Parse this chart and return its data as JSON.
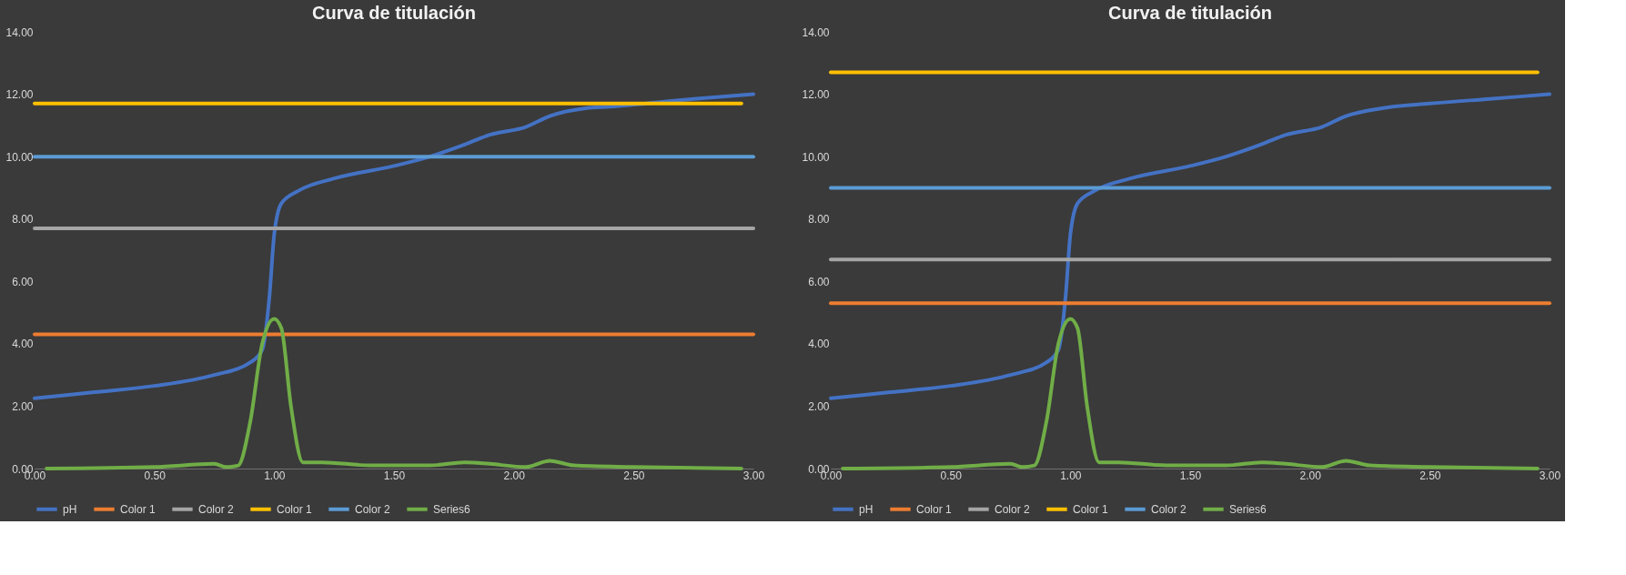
{
  "chart_data": [
    {
      "type": "line",
      "title": "Curva de titulación",
      "xlim": [
        0,
        3
      ],
      "ylim": [
        0,
        14
      ],
      "xticks": [
        {
          "value": 0,
          "label": "0.00"
        },
        {
          "value": 0.5,
          "label": "0.50"
        },
        {
          "value": 1,
          "label": "1.00"
        },
        {
          "value": 1.5,
          "label": "1.50"
        },
        {
          "value": 2,
          "label": "2.00"
        },
        {
          "value": 2.5,
          "label": "2.50"
        },
        {
          "value": 3,
          "label": "3.00"
        }
      ],
      "yticks": [
        {
          "value": 0,
          "label": "0.00"
        },
        {
          "value": 2,
          "label": "2.00"
        },
        {
          "value": 4,
          "label": "4.00"
        },
        {
          "value": 6,
          "label": "6.00"
        },
        {
          "value": 8,
          "label": "8.00"
        },
        {
          "value": 10,
          "label": "10.00"
        },
        {
          "value": 12,
          "label": "12.00"
        },
        {
          "value": 14,
          "label": "14.00"
        }
      ],
      "grid": false,
      "legend": "bottom",
      "marker": "none",
      "line_style": "solid",
      "series": [
        {
          "name": "pH",
          "color": "#4472c4",
          "x": [
            0,
            0.25,
            0.5,
            0.75,
            0.9,
            0.95,
            0.98,
            1.0,
            1.03,
            1.1,
            1.25,
            1.5,
            1.65,
            1.8,
            1.9,
            2.05,
            2.15,
            2.3,
            2.4,
            2.75,
            3.0
          ],
          "values": [
            2.25,
            2.45,
            2.65,
            3.0,
            3.4,
            3.8,
            5.5,
            7.5,
            8.5,
            8.9,
            9.3,
            9.7,
            10.0,
            10.4,
            10.7,
            10.95,
            11.3,
            11.55,
            11.6,
            11.85,
            12.0
          ]
        },
        {
          "name": "Color 1",
          "color": "#ed7d31",
          "x": [
            0,
            3.0
          ],
          "values": [
            4.3,
            4.3
          ]
        },
        {
          "name": "Color 2",
          "color": "#a5a5a5",
          "x": [
            0,
            3.0
          ],
          "values": [
            7.7,
            7.7
          ]
        },
        {
          "name": "Color 1",
          "color": "#ffc000",
          "x": [
            0,
            2.95
          ],
          "values": [
            11.7,
            11.7
          ]
        },
        {
          "name": "Color 2",
          "color": "#5b9bd5",
          "x": [
            0,
            3.0
          ],
          "values": [
            10.0,
            10.0
          ]
        },
        {
          "name": "Series6",
          "color": "#70ad47",
          "x": [
            0.05,
            0.5,
            0.75,
            0.8,
            0.85,
            0.9,
            0.95,
            1.0,
            1.03,
            1.07,
            1.12,
            1.2,
            1.4,
            1.65,
            1.8,
            1.9,
            2.05,
            2.15,
            2.25,
            2.5,
            2.95
          ],
          "values": [
            0.0,
            0.05,
            0.15,
            0.05,
            0.1,
            1.5,
            4.0,
            4.8,
            4.5,
            2.0,
            0.2,
            0.2,
            0.1,
            0.1,
            0.2,
            0.15,
            0.05,
            0.25,
            0.1,
            0.05,
            0.0
          ]
        }
      ]
    },
    {
      "type": "line",
      "title": "Curva de titulación",
      "xlim": [
        0,
        3
      ],
      "ylim": [
        0,
        14
      ],
      "xticks": [
        {
          "value": 0,
          "label": "0.00"
        },
        {
          "value": 0.5,
          "label": "0.50"
        },
        {
          "value": 1,
          "label": "1.00"
        },
        {
          "value": 1.5,
          "label": "1.50"
        },
        {
          "value": 2,
          "label": "2.00"
        },
        {
          "value": 2.5,
          "label": "2.50"
        },
        {
          "value": 3,
          "label": "3.00"
        }
      ],
      "yticks": [
        {
          "value": 0,
          "label": "0.00"
        },
        {
          "value": 2,
          "label": "2.00"
        },
        {
          "value": 4,
          "label": "4.00"
        },
        {
          "value": 6,
          "label": "6.00"
        },
        {
          "value": 8,
          "label": "8.00"
        },
        {
          "value": 10,
          "label": "10.00"
        },
        {
          "value": 12,
          "label": "12.00"
        },
        {
          "value": 14,
          "label": "14.00"
        }
      ],
      "grid": false,
      "legend": "bottom",
      "marker": "none",
      "line_style": "solid",
      "series": [
        {
          "name": "pH",
          "color": "#4472c4",
          "x": [
            0,
            0.25,
            0.5,
            0.75,
            0.9,
            0.95,
            0.98,
            1.0,
            1.03,
            1.1,
            1.25,
            1.5,
            1.65,
            1.8,
            1.9,
            2.05,
            2.15,
            2.3,
            2.5,
            2.75,
            3.0
          ],
          "values": [
            2.25,
            2.45,
            2.65,
            3.0,
            3.4,
            3.8,
            5.5,
            7.5,
            8.5,
            8.9,
            9.3,
            9.7,
            10.0,
            10.4,
            10.7,
            10.95,
            11.3,
            11.55,
            11.7,
            11.85,
            12.0
          ]
        },
        {
          "name": "Color 1",
          "color": "#ed7d31",
          "x": [
            0,
            3.0
          ],
          "values": [
            5.3,
            5.3
          ]
        },
        {
          "name": "Color 2",
          "color": "#a5a5a5",
          "x": [
            0,
            3.0
          ],
          "values": [
            6.7,
            6.7
          ]
        },
        {
          "name": "Color 1",
          "color": "#ffc000",
          "x": [
            0,
            2.95
          ],
          "values": [
            12.7,
            12.7
          ]
        },
        {
          "name": "Color 2",
          "color": "#5b9bd5",
          "x": [
            0,
            3.0
          ],
          "values": [
            9.0,
            9.0
          ]
        },
        {
          "name": "Series6",
          "color": "#70ad47",
          "x": [
            0.05,
            0.5,
            0.75,
            0.8,
            0.85,
            0.9,
            0.95,
            1.0,
            1.03,
            1.07,
            1.12,
            1.2,
            1.4,
            1.65,
            1.8,
            1.9,
            2.05,
            2.15,
            2.25,
            2.5,
            2.95
          ],
          "values": [
            0.0,
            0.05,
            0.15,
            0.05,
            0.1,
            1.5,
            4.0,
            4.8,
            4.5,
            2.0,
            0.2,
            0.2,
            0.1,
            0.1,
            0.2,
            0.15,
            0.05,
            0.25,
            0.1,
            0.05,
            0.0
          ]
        }
      ]
    }
  ]
}
